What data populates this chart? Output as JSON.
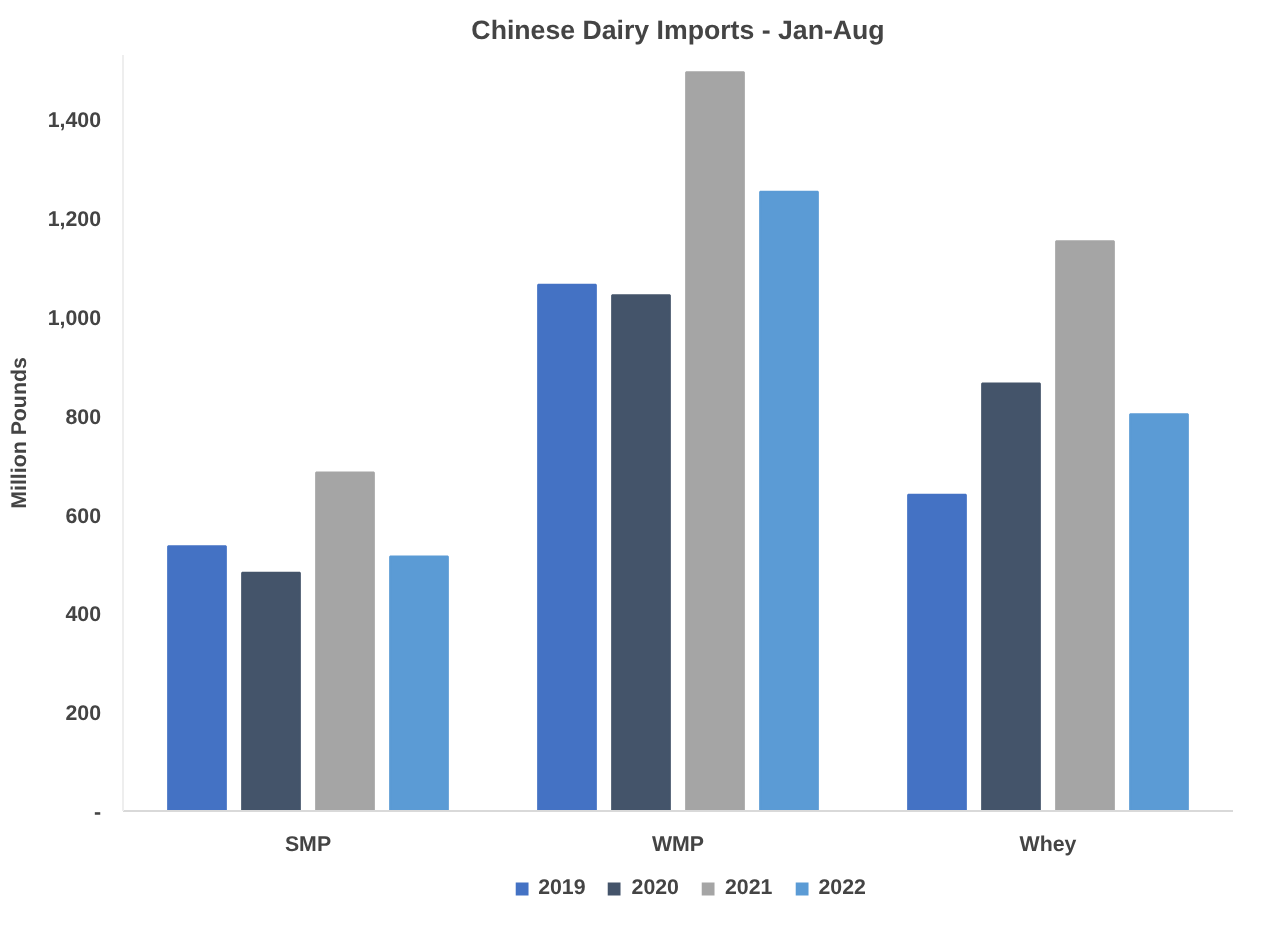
{
  "chart_data": {
    "type": "bar",
    "title": "Chinese Dairy Imports - Jan-Aug",
    "ylabel": "Million Pounds",
    "categories": [
      "SMP",
      "WMP",
      "Whey"
    ],
    "series": [
      {
        "name": "2019",
        "color": "#4472c4",
        "values": [
          536,
          1065,
          640
        ]
      },
      {
        "name": "2020",
        "color": "#44546a",
        "values": [
          482,
          1044,
          865
        ]
      },
      {
        "name": "2021",
        "color": "#a5a5a5",
        "values": [
          685,
          1495,
          1153
        ]
      },
      {
        "name": "2022",
        "color": "#5b9bd5",
        "values": [
          515,
          1253,
          803
        ]
      }
    ],
    "ylim": [
      0,
      1530
    ],
    "yticks": [
      {
        "value": 0,
        "label": "-"
      },
      {
        "value": 200,
        "label": "200"
      },
      {
        "value": 400,
        "label": "400"
      },
      {
        "value": 600,
        "label": "600"
      },
      {
        "value": 800,
        "label": "800"
      },
      {
        "value": 1000,
        "label": "1,000"
      },
      {
        "value": 1200,
        "label": "1,200"
      },
      {
        "value": 1400,
        "label": "1,400"
      }
    ],
    "grid": false,
    "legend": "bottom"
  }
}
